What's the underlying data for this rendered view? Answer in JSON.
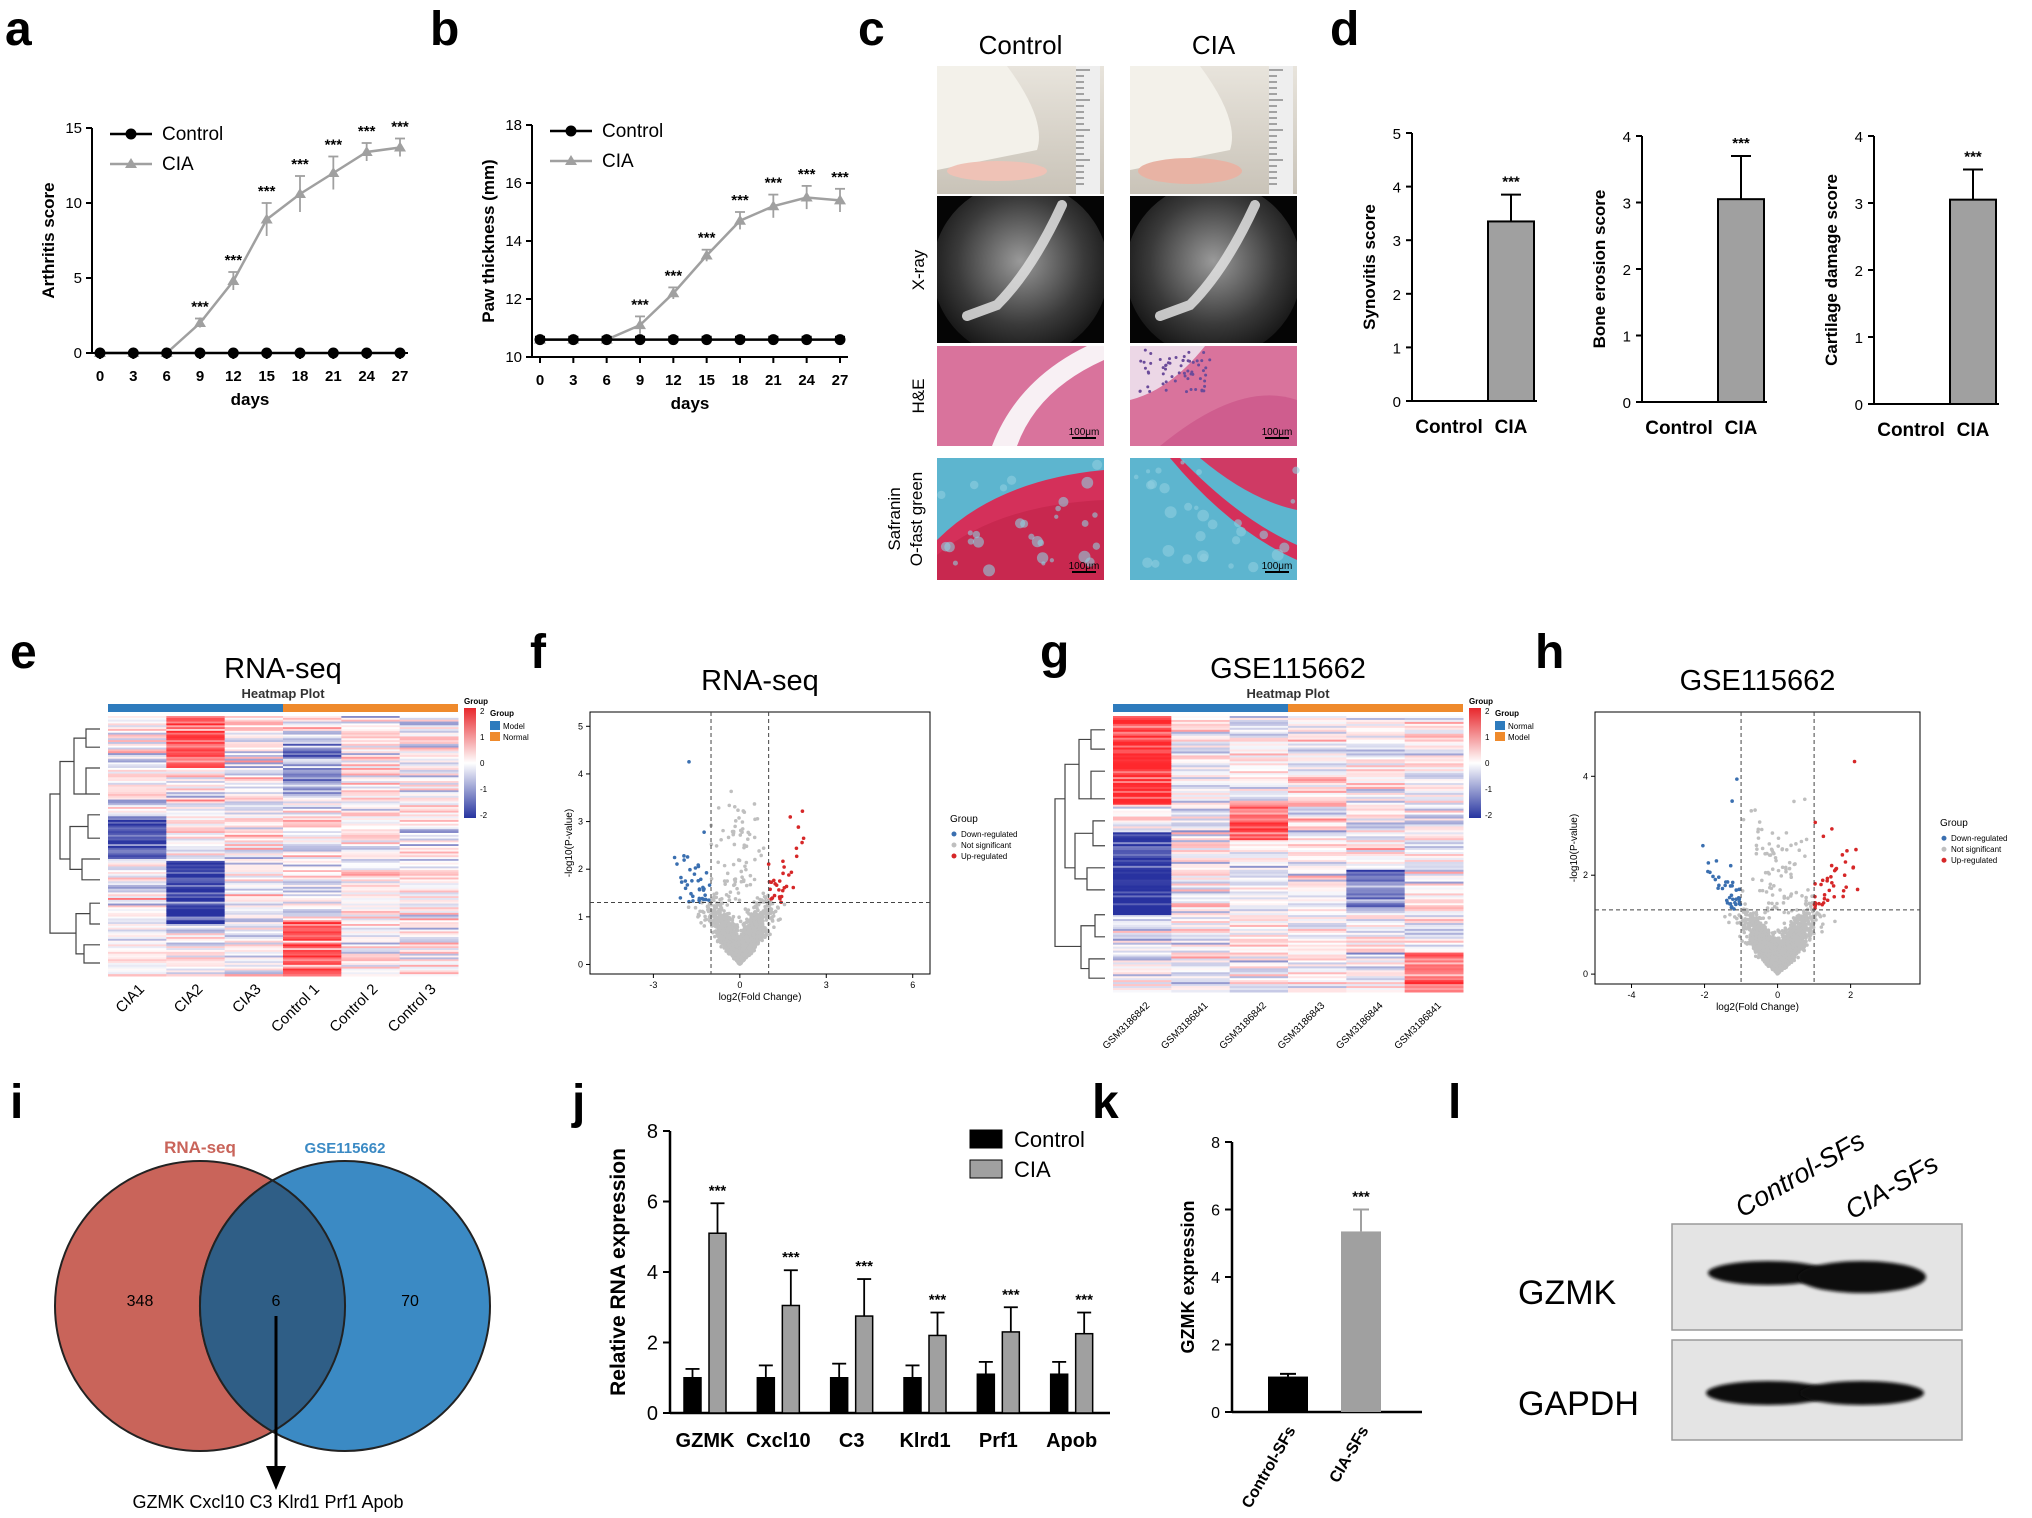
{
  "panels": {
    "a": {
      "label": "a",
      "chart_data": {
        "type": "line",
        "x": [
          0,
          3,
          6,
          9,
          12,
          15,
          18,
          21,
          24,
          27
        ],
        "series": [
          {
            "name": "Control",
            "values": [
              0,
              0,
              0,
              0,
              0,
              0,
              0,
              0,
              0,
              0
            ],
            "err": [
              0,
              0,
              0,
              0,
              0,
              0,
              0,
              0,
              0,
              0
            ],
            "color": "#000000"
          },
          {
            "name": "CIA",
            "values": [
              0,
              0,
              0,
              2.0,
              4.8,
              8.9,
              10.6,
              12.0,
              13.4,
              13.7
            ],
            "err": [
              0,
              0,
              0,
              0.3,
              0.6,
              1.1,
              1.2,
              1.1,
              0.6,
              0.6
            ],
            "color": "#a0a0a0"
          }
        ],
        "stars": [
          "",
          "",
          "",
          "***",
          "***",
          "***",
          "***",
          "***",
          "***",
          "***"
        ],
        "xlabel": "days",
        "ylabel": "Arthritis score",
        "ylim": [
          0,
          15
        ],
        "yticks": [
          0,
          5,
          10,
          15
        ],
        "legend": "top-left"
      }
    },
    "b": {
      "label": "b",
      "chart_data": {
        "type": "line",
        "x": [
          0,
          3,
          6,
          9,
          12,
          15,
          18,
          21,
          24,
          27
        ],
        "series": [
          {
            "name": "Control",
            "values": [
              10.6,
              10.6,
              10.6,
              10.6,
              10.6,
              10.6,
              10.6,
              10.6,
              10.6,
              10.6
            ],
            "err": [
              0.1,
              0.1,
              0.1,
              0.1,
              0.1,
              0.1,
              0.1,
              0.1,
              0.1,
              0.1
            ],
            "color": "#000000"
          },
          {
            "name": "CIA",
            "values": [
              10.6,
              10.6,
              10.6,
              11.1,
              12.2,
              13.5,
              14.7,
              15.2,
              15.5,
              15.4
            ],
            "err": [
              0,
              0,
              0,
              0.3,
              0.2,
              0.2,
              0.3,
              0.4,
              0.4,
              0.4
            ],
            "color": "#a0a0a0"
          }
        ],
        "stars": [
          "",
          "",
          "",
          "***",
          "***",
          "***",
          "***",
          "***",
          "***",
          "***"
        ],
        "xlabel": "days",
        "ylabel": "Paw thickness (mm)",
        "ylim": [
          10,
          18
        ],
        "yticks": [
          10,
          12,
          14,
          16,
          18
        ],
        "legend": "top-left"
      }
    },
    "c": {
      "label": "c",
      "columns": [
        "Control",
        "CIA"
      ],
      "rows": [
        "X-ray",
        "H&E",
        "Safranin",
        "O-fast green"
      ],
      "scale": "100μm"
    },
    "d": {
      "label": "d",
      "chart_data": [
        {
          "type": "bar",
          "categories": [
            "Control",
            "CIA"
          ],
          "values": [
            0,
            3.35
          ],
          "err": [
            0,
            0.5
          ],
          "stars": [
            "",
            "***"
          ],
          "ylabel": "Synovitis score",
          "ylim": [
            0,
            5
          ],
          "yticks": [
            0,
            1,
            2,
            3,
            4,
            5
          ]
        },
        {
          "type": "bar",
          "categories": [
            "Control",
            "CIA"
          ],
          "values": [
            0,
            3.05
          ],
          "err": [
            0,
            0.65
          ],
          "stars": [
            "",
            "***"
          ],
          "ylabel": "Bone erosion score",
          "ylim": [
            0,
            4
          ],
          "yticks": [
            0,
            1,
            2,
            3,
            4
          ]
        },
        {
          "type": "bar",
          "categories": [
            "Control",
            "CIA"
          ],
          "values": [
            0,
            3.05
          ],
          "err": [
            0,
            0.45
          ],
          "stars": [
            "",
            "***"
          ],
          "ylabel": "Cartilage damage score",
          "ylim": [
            0,
            4
          ],
          "yticks": [
            0,
            1,
            2,
            3,
            4
          ]
        }
      ]
    },
    "e": {
      "label": "e",
      "title": "RNA-seq",
      "subtitle": "Heatmap Plot",
      "columns": [
        "CIA1",
        "CIA2",
        "CIA3",
        "Control 1",
        "Control 2",
        "Control 3"
      ],
      "legend_title": "Group",
      "legend_items": [
        {
          "name": "Model",
          "color": "#2e7bbd"
        },
        {
          "name": "Normal",
          "color": "#ef8a2c"
        }
      ],
      "scale_ticks": [
        "2",
        "1",
        "0",
        "-1",
        "-2"
      ]
    },
    "f": {
      "label": "f",
      "title": "RNA-seq",
      "chart_data": {
        "type": "scatter",
        "xlabel": "log2(Fold Change)",
        "ylabel": "-log10(P-value)",
        "xticks": [
          "-3",
          "0",
          "3",
          "6"
        ],
        "yticks": [
          "0",
          "1",
          "2",
          "3",
          "4",
          "5"
        ],
        "legend_title": "Group",
        "legend": [
          {
            "name": "Down-regulated",
            "color": "#3a6fb0"
          },
          {
            "name": "Not significant",
            "color": "#bfbfbf"
          },
          {
            "name": "Up-regulated",
            "color": "#d62728"
          }
        ]
      }
    },
    "g": {
      "label": "g",
      "title": "GSE115662",
      "subtitle": "Heatmap Plot",
      "columns": [
        "GSM3186842",
        "GSM3186841",
        "GSM3186842",
        "GSM3186843",
        "GSM3186844",
        "GSM3186841"
      ],
      "legend_title": "Group",
      "legend_items": [
        {
          "name": "Normal",
          "color": "#2e7bbd"
        },
        {
          "name": "Model",
          "color": "#ef8a2c"
        }
      ],
      "scale_ticks": [
        "2",
        "1",
        "0",
        "-1",
        "-2"
      ]
    },
    "h": {
      "label": "h",
      "title": "GSE115662",
      "chart_data": {
        "type": "scatter",
        "xlabel": "log2(Fold Change)",
        "ylabel": "-log10(P-value)",
        "xticks": [
          "-4",
          "-2",
          "0",
          "2"
        ],
        "yticks": [
          "0",
          "2",
          "4"
        ],
        "legend_title": "Group",
        "legend": [
          {
            "name": "Down-regulated",
            "color": "#3a6fb0"
          },
          {
            "name": "Not significant",
            "color": "#bfbfbf"
          },
          {
            "name": "Up-regulated",
            "color": "#d62728"
          }
        ]
      }
    },
    "i": {
      "label": "i",
      "left_name": "RNA-seq",
      "right_name": "GSE115662",
      "left_count": "348",
      "overlap_count": "6",
      "right_count": "70",
      "genes": "GZMK  Cxcl10  C3  Klrd1  Prf1  Apob",
      "left_color": "#c9645a",
      "right_color": "#3b8ac4",
      "overlap_color": "#2f5e86"
    },
    "j": {
      "label": "j",
      "chart_data": {
        "type": "bar",
        "categories": [
          "GZMK",
          "Cxcl10",
          "C3",
          "Klrd1",
          "Prf1",
          "Apob"
        ],
        "series": [
          {
            "name": "Control",
            "values": [
              1.0,
              1.0,
              1.0,
              1.0,
              1.1,
              1.1
            ],
            "err": [
              0.25,
              0.35,
              0.4,
              0.35,
              0.35,
              0.35
            ],
            "color": "#000000"
          },
          {
            "name": "CIA",
            "values": [
              5.1,
              3.05,
              2.75,
              2.2,
              2.3,
              2.25
            ],
            "err": [
              0.85,
              1.0,
              1.05,
              0.65,
              0.7,
              0.6
            ],
            "color": "#a0a0a0"
          }
        ],
        "stars": [
          "***",
          "***",
          "***",
          "***",
          "***",
          "***"
        ],
        "ylabel": "Relative RNA expression",
        "ylim": [
          0,
          8
        ],
        "yticks": [
          0,
          2,
          4,
          6,
          8
        ],
        "legend": "top-right"
      }
    },
    "k": {
      "label": "k",
      "chart_data": {
        "type": "bar",
        "categories": [
          "Control-SFs",
          "CIA-SFs"
        ],
        "values": [
          1.05,
          5.35
        ],
        "err": [
          0.08,
          0.65
        ],
        "colors": [
          "#000000",
          "#a0a0a0"
        ],
        "stars": [
          "",
          "***"
        ],
        "ylabel": "GZMK expression",
        "ylim": [
          0,
          8
        ],
        "yticks": [
          0,
          2,
          4,
          6,
          8
        ]
      }
    },
    "l": {
      "label": "l",
      "columns": [
        "Control-SFs",
        "CIA-SFs"
      ],
      "rows": [
        "GZMK",
        "GAPDH"
      ]
    }
  }
}
